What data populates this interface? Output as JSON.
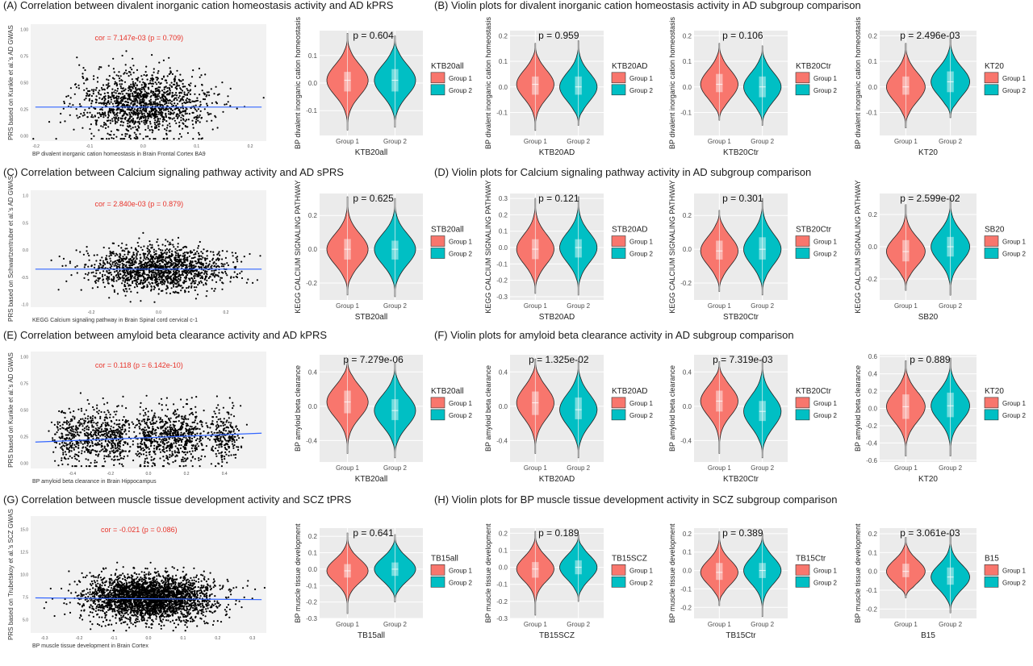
{
  "rows": [
    {
      "left_title": "(A) Correlation between divalent inorganic cation homeostasis activity and AD kPRS",
      "right_title": "(B) Violin plots for divalent inorganic cation homeostasis activity in AD subgroup comparison",
      "scatter": {
        "type": "scatter",
        "ylabel": "PRS based on Kunkle et al.'s AD GWAS",
        "xlabel": "BP divalent inorganic cation homeostasis in Brain Frontal Cortex BA9",
        "annotation": "cor = 7.147e-03 (p = 0.709)",
        "x_ticks": [
          "-0.2",
          "-0.1",
          "0.0",
          "0.1",
          "0.2"
        ],
        "y_ticks": [
          "1.00",
          "0.75",
          "0.50",
          "0.25",
          "0.00"
        ],
        "xlim": [
          -0.21,
          0.23
        ],
        "ylim": [
          -0.05,
          1.05
        ],
        "fit": {
          "intercept": 0.27,
          "slope": 0.0
        },
        "cloud": {
          "n": 1400,
          "sx": 0.06,
          "my": 0.3,
          "sy": 0.15
        }
      },
      "violins": [
        {
          "type": "violin",
          "ylabel": "BP divalent inorganic cation homeostasis",
          "xlabel": "KTB20all",
          "legend_title": "KTB20all",
          "p_label": "p = 0.604",
          "y_ticks": [
            "0.1",
            "0.0",
            "-0.1"
          ],
          "ylim": [
            -0.19,
            0.19
          ],
          "groups": [
            {
              "name": "Group 1",
              "median": 0.01,
              "q1": -0.03,
              "q3": 0.04,
              "min": -0.17,
              "max": 0.18,
              "sd": 0.055
            },
            {
              "name": "Group 2",
              "median": 0.01,
              "q1": -0.03,
              "q3": 0.05,
              "min": -0.16,
              "max": 0.17,
              "sd": 0.055
            }
          ]
        },
        {
          "type": "violin",
          "ylabel": "BP divalent inorganic cation homeostasis",
          "xlabel": "KTB20AD",
          "legend_title": "KTB20AD",
          "p_label": "p = 0.959",
          "y_ticks": [
            "0.2",
            "0.1",
            "0.0",
            "-0.1"
          ],
          "ylim": [
            -0.19,
            0.22
          ],
          "groups": [
            {
              "name": "Group 1",
              "median": 0.01,
              "q1": -0.03,
              "q3": 0.04,
              "min": -0.17,
              "max": 0.17,
              "sd": 0.055
            },
            {
              "name": "Group 2",
              "median": 0.0,
              "q1": -0.03,
              "q3": 0.04,
              "min": -0.15,
              "max": 0.18,
              "sd": 0.055
            }
          ]
        },
        {
          "type": "violin",
          "ylabel": "BP divalent inorganic cation homeostasis",
          "xlabel": "KTB20Ctr",
          "legend_title": "KTB20Ctr",
          "p_label": "p = 0.106",
          "y_ticks": [
            "0.2",
            "0.1",
            "0.0",
            "-0.1"
          ],
          "ylim": [
            -0.19,
            0.22
          ],
          "groups": [
            {
              "name": "Group 1",
              "median": 0.01,
              "q1": -0.02,
              "q3": 0.05,
              "min": -0.13,
              "max": 0.17,
              "sd": 0.055
            },
            {
              "name": "Group 2",
              "median": 0.0,
              "q1": -0.04,
              "q3": 0.04,
              "min": -0.15,
              "max": 0.16,
              "sd": 0.055
            }
          ]
        },
        {
          "type": "violin",
          "ylabel": "BP divalent inorganic cation homeostasis",
          "xlabel": "KT20",
          "legend_title": "KT20",
          "p_label": "p = 2.496e-03",
          "y_ticks": [
            "0.2",
            "0.1",
            "0.0",
            "-0.1"
          ],
          "ylim": [
            -0.19,
            0.22
          ],
          "groups": [
            {
              "name": "Group 1",
              "median": 0.0,
              "q1": -0.03,
              "q3": 0.04,
              "min": -0.16,
              "max": 0.17,
              "sd": 0.055
            },
            {
              "name": "Group 2",
              "median": 0.02,
              "q1": -0.02,
              "q3": 0.06,
              "min": -0.12,
              "max": 0.19,
              "sd": 0.055
            }
          ]
        }
      ]
    },
    {
      "left_title": "(C) Correlation between Calcium signaling pathway activity and AD sPRS",
      "right_title": "(D) Violin plots for Calcium signaling pathway activity in AD subgroup comparison",
      "scatter": {
        "type": "scatter",
        "ylabel": "PRS based on Schwartzentruber et al.'s AD GWAS",
        "xlabel": "KEGG Calcium signaling pathway in Brain Spinal cord cervical c-1",
        "annotation": "cor = 2.840e-03 (p = 0.879)",
        "x_ticks": [
          "-0.2",
          "0.0",
          "0.2"
        ],
        "y_ticks": [
          "1.0",
          "0.5",
          "0.0",
          "-0.5",
          "-1.0"
        ],
        "xlim": [
          -0.38,
          0.32
        ],
        "ylim": [
          -1.05,
          1.1
        ],
        "fit": {
          "intercept": -0.35,
          "slope": 0.0
        },
        "cloud": {
          "n": 1500,
          "sx": 0.1,
          "my": -0.35,
          "sy": 0.2
        }
      },
      "violins": [
        {
          "type": "violin",
          "ylabel": "KEGG CALCIUM SIGNALING PATHWAY",
          "xlabel": "STB20all",
          "legend_title": "STB20all",
          "p_label": "p = 0.625",
          "y_ticks": [
            "0.2",
            "0.0",
            "-0.2"
          ],
          "ylim": [
            -0.3,
            0.33
          ],
          "groups": [
            {
              "name": "Group 1",
              "median": 0.0,
              "q1": -0.06,
              "q3": 0.06,
              "min": -0.27,
              "max": 0.31,
              "sd": 0.09
            },
            {
              "name": "Group 2",
              "median": 0.0,
              "q1": -0.06,
              "q3": 0.05,
              "min": -0.28,
              "max": 0.3,
              "sd": 0.09
            }
          ]
        },
        {
          "type": "violin",
          "ylabel": "KEGG CALCIUM SIGNALING PATHWAY",
          "xlabel": "STB20AD",
          "legend_title": "STB20AD",
          "p_label": "p =  0.121",
          "y_ticks": [
            "0.3",
            "0.2",
            "0.1",
            "0.0",
            "-0.1",
            "-0.2",
            "-0.3"
          ],
          "ylim": [
            -0.32,
            0.33
          ],
          "groups": [
            {
              "name": "Group 1",
              "median": -0.01,
              "q1": -0.07,
              "q3": 0.05,
              "min": -0.28,
              "max": 0.3,
              "sd": 0.09
            },
            {
              "name": "Group 2",
              "median": 0.0,
              "q1": -0.06,
              "q3": 0.05,
              "min": -0.29,
              "max": 0.31,
              "sd": 0.09
            }
          ]
        },
        {
          "type": "violin",
          "ylabel": "KEGG CALCIUM SIGNALING PATHWAY",
          "xlabel": "STB20Ctr",
          "legend_title": "STB20Ctr",
          "p_label": "p = 0.301",
          "y_ticks": [
            "0.2",
            "0.0",
            "-0.2"
          ],
          "ylim": [
            -0.3,
            0.33
          ],
          "groups": [
            {
              "name": "Group 1",
              "median": -0.01,
              "q1": -0.06,
              "q3": 0.05,
              "min": -0.25,
              "max": 0.23,
              "sd": 0.085
            },
            {
              "name": "Group 2",
              "median": 0.0,
              "q1": -0.06,
              "q3": 0.07,
              "min": -0.27,
              "max": 0.3,
              "sd": 0.09
            }
          ]
        },
        {
          "type": "violin",
          "ylabel": "KEGG CALCIUM SIGNALING PATHWAY",
          "xlabel": "SB20",
          "legend_title": "SB20",
          "p_label": "p = 2.599e-02",
          "y_ticks": [
            "0.2",
            "0.0",
            "-0.2"
          ],
          "ylim": [
            -0.33,
            0.33
          ],
          "groups": [
            {
              "name": "Group 1",
              "median": -0.03,
              "q1": -0.09,
              "q3": 0.04,
              "min": -0.27,
              "max": 0.26,
              "sd": 0.085
            },
            {
              "name": "Group 2",
              "median": 0.0,
              "q1": -0.06,
              "q3": 0.06,
              "min": -0.3,
              "max": 0.3,
              "sd": 0.09
            }
          ]
        }
      ]
    },
    {
      "left_title": "(E) Correlation between amyloid beta clearance activity and AD kPRS",
      "right_title": "(F) Violin plots for amyloid beta clearance activity in AD subgroup comparison",
      "scatter": {
        "type": "scatter",
        "ylabel": "PRS based on Kunkle et al.'s AD GWAS",
        "xlabel": "BP amyloid beta clearance in Brain Hippocampus",
        "annotation": "cor = 0.118 (p = 6.142e-10)",
        "x_ticks": [
          "-0.4",
          "-0.2",
          "0.0",
          "0.2",
          "0.4"
        ],
        "y_ticks": [
          "1.00",
          "0.75",
          "0.50",
          "0.25",
          "0.00"
        ],
        "xlim": [
          -0.62,
          0.62
        ],
        "ylim": [
          -0.05,
          1.05
        ],
        "fit": {
          "intercept": 0.24,
          "slope": 0.07
        },
        "cloud": {
          "n": 1600,
          "sx": 0.22,
          "my": 0.25,
          "sy": 0.13
        }
      },
      "violins": [
        {
          "type": "violin",
          "ylabel": "BP amyloid beta clearance",
          "xlabel": "KTB20all",
          "legend_title": "KTB20all",
          "p_label": "p = 7.279e-06",
          "y_ticks": [
            "0.4",
            "0.0",
            "-0.4"
          ],
          "ylim": [
            -0.65,
            0.6
          ],
          "groups": [
            {
              "name": "Group 1",
              "median": 0.05,
              "q1": -0.08,
              "q3": 0.18,
              "min": -0.55,
              "max": 0.55,
              "sd": 0.18
            },
            {
              "name": "Group 2",
              "median": -0.05,
              "q1": -0.16,
              "q3": 0.08,
              "min": -0.6,
              "max": 0.5,
              "sd": 0.18
            }
          ]
        },
        {
          "type": "violin",
          "ylabel": "BP amyloid beta clearance",
          "xlabel": "KTB20AD",
          "legend_title": "KTB20AD",
          "p_label": "p = 1.325e-02",
          "y_ticks": [
            "0.4",
            "0.0",
            "-0.4"
          ],
          "ylim": [
            -0.65,
            0.6
          ],
          "groups": [
            {
              "name": "Group 1",
              "median": 0.04,
              "q1": -0.1,
              "q3": 0.17,
              "min": -0.55,
              "max": 0.55,
              "sd": 0.18
            },
            {
              "name": "Group 2",
              "median": -0.04,
              "q1": -0.15,
              "q3": 0.1,
              "min": -0.6,
              "max": 0.52,
              "sd": 0.18
            }
          ]
        },
        {
          "type": "violin",
          "ylabel": "BP amyloid beta clearance",
          "xlabel": "KTB20Ctr",
          "legend_title": "KTB20Ctr",
          "p_label": "p = 7.319e-03",
          "y_ticks": [
            "0.4",
            "0.0",
            "-0.4"
          ],
          "ylim": [
            -0.65,
            0.6
          ],
          "groups": [
            {
              "name": "Group 1",
              "median": 0.06,
              "q1": -0.06,
              "q3": 0.18,
              "min": -0.55,
              "max": 0.52,
              "sd": 0.17
            },
            {
              "name": "Group 2",
              "median": -0.06,
              "q1": -0.17,
              "q3": 0.06,
              "min": -0.6,
              "max": 0.55,
              "sd": 0.18
            }
          ]
        },
        {
          "type": "violin",
          "ylabel": "BP amyloid beta clearance",
          "xlabel": "KT20",
          "legend_title": "KT20",
          "p_label": "p = 0.889",
          "y_ticks": [
            "0.6",
            "0.4",
            "0.2",
            "0.0",
            "-0.2",
            "-0.4",
            "-0.6"
          ],
          "ylim": [
            -0.62,
            0.62
          ],
          "groups": [
            {
              "name": "Group 1",
              "median": 0.02,
              "q1": -0.12,
              "q3": 0.16,
              "min": -0.55,
              "max": 0.55,
              "sd": 0.17
            },
            {
              "name": "Group 2",
              "median": 0.03,
              "q1": -0.1,
              "q3": 0.18,
              "min": -0.55,
              "max": 0.58,
              "sd": 0.17
            }
          ]
        }
      ]
    },
    {
      "left_title": "(G) Correlation between muscle tissue development activity and SCZ tPRS",
      "right_title": "(H) Violin plots for BP muscle tissue development activity in SCZ subgroup comparison",
      "scatter": {
        "type": "scatter",
        "ylabel": "PRS based on Trubetskoy et al.'s SCZ GWAS",
        "xlabel": "BP muscle tissue development in Brain Cortex",
        "annotation": "cor = -0.021 (p = 0.086)",
        "x_ticks": [
          "-0.3",
          "-0.2",
          "-0.1",
          "0.0",
          "0.1",
          "0.2",
          "0.3"
        ],
        "y_ticks": [
          "15.0",
          "12.5",
          "10.0",
          "7.5",
          "5.0"
        ],
        "xlim": [
          -0.34,
          0.34
        ],
        "ylim": [
          3.5,
          16.5
        ],
        "fit": {
          "intercept": 7.3,
          "slope": -0.3
        },
        "cloud": {
          "n": 3000,
          "sx": 0.09,
          "my": 7.4,
          "sy": 1.25
        }
      },
      "violins": [
        {
          "type": "violin",
          "ylabel": "BP muscle tissue development",
          "xlabel": "TB15all",
          "legend_title": "TB15all",
          "p_label": "p = 0.641",
          "y_ticks": [
            "0.2",
            "0.1",
            "0.0",
            "-0.1",
            "-0.2",
            "-0.3"
          ],
          "ylim": [
            -0.3,
            0.25
          ],
          "groups": [
            {
              "name": "Group 1",
              "median": -0.01,
              "q1": -0.05,
              "q3": 0.03,
              "min": -0.27,
              "max": 0.22,
              "sd": 0.07
            },
            {
              "name": "Group 2",
              "median": 0.0,
              "q1": -0.04,
              "q3": 0.04,
              "min": -0.2,
              "max": 0.21,
              "sd": 0.07
            }
          ]
        },
        {
          "type": "violin",
          "ylabel": "BP muscle tissue development",
          "xlabel": "TB15SCZ",
          "legend_title": "TB15SCZ",
          "p_label": "p =  0.189",
          "y_ticks": [
            "0.2",
            "0.1",
            "0.0",
            "-0.1",
            "-0.2",
            "-0.3"
          ],
          "ylim": [
            -0.3,
            0.23
          ],
          "groups": [
            {
              "name": "Group 1",
              "median": -0.01,
              "q1": -0.06,
              "q3": 0.03,
              "min": -0.28,
              "max": 0.21,
              "sd": 0.07
            },
            {
              "name": "Group 2",
              "median": 0.0,
              "q1": -0.04,
              "q3": 0.04,
              "min": -0.2,
              "max": 0.19,
              "sd": 0.07
            }
          ]
        },
        {
          "type": "violin",
          "ylabel": "BP muscle tissue development",
          "xlabel": "TB15Ctr",
          "legend_title": "TB15Ctr",
          "p_label": "p = 0.389",
          "y_ticks": [
            "0.2",
            "0.1",
            "0.0",
            "-0.1",
            "-0.2"
          ],
          "ylim": [
            -0.26,
            0.23
          ],
          "groups": [
            {
              "name": "Group 1",
              "median": -0.01,
              "q1": -0.05,
              "q3": 0.04,
              "min": -0.19,
              "max": 0.21,
              "sd": 0.065
            },
            {
              "name": "Group 2",
              "median": 0.0,
              "q1": -0.04,
              "q3": 0.04,
              "min": -0.25,
              "max": 0.2,
              "sd": 0.07
            }
          ]
        },
        {
          "type": "violin",
          "ylabel": "BP muscle tissue development",
          "xlabel": "B15",
          "legend_title": "B15",
          "p_label": "p = 3.061e-03",
          "y_ticks": [
            "0.2",
            "0.1",
            "0.0",
            "-0.1",
            "-0.2"
          ],
          "ylim": [
            -0.25,
            0.23
          ],
          "groups": [
            {
              "name": "Group 1",
              "median": 0.0,
              "q1": -0.03,
              "q3": 0.04,
              "min": -0.14,
              "max": 0.18,
              "sd": 0.06
            },
            {
              "name": "Group 2",
              "median": -0.03,
              "q1": -0.07,
              "q3": 0.02,
              "min": -0.22,
              "max": 0.2,
              "sd": 0.065
            }
          ]
        }
      ]
    }
  ],
  "group_labels": [
    "Group 1",
    "Group 2"
  ],
  "colors": {
    "panel_bg": "#ebebeb",
    "grid": "#ffffff",
    "group1": "#f8766d",
    "group2": "#00bfc4",
    "scatter_point": "#000000",
    "fit_line": "#3366ff",
    "annotation": "#e8332a",
    "scatter_bg": "#f2f2f2"
  }
}
